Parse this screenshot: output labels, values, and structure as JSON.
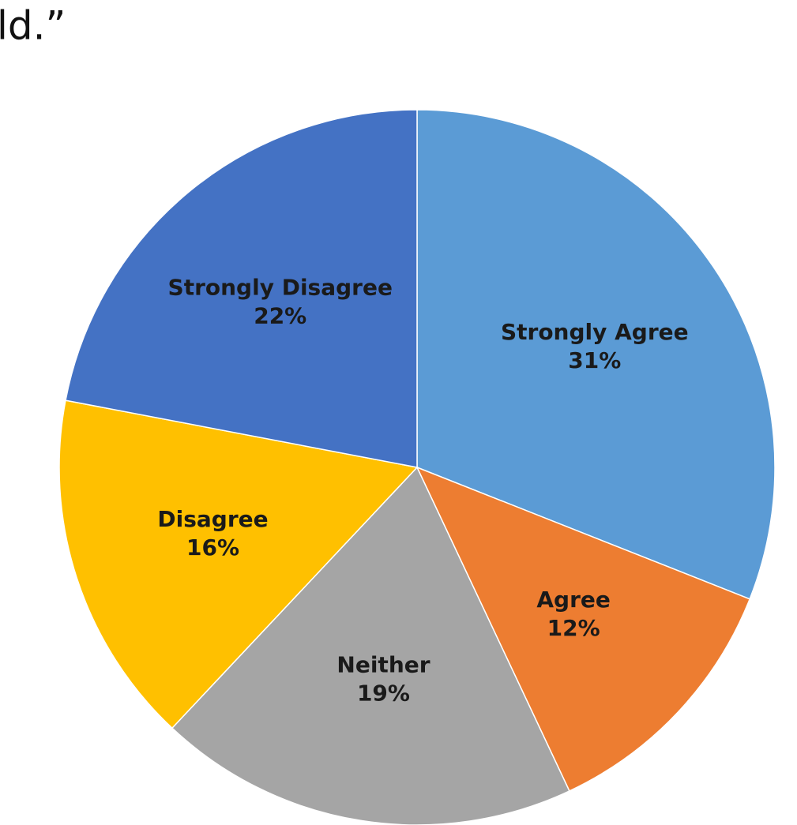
{
  "chart_data": {
    "type": "pie",
    "title": "ld.”",
    "categories": [
      "Strongly Agree",
      "Agree",
      "Neither",
      "Disagree",
      "Strongly Disagree"
    ],
    "values": [
      31,
      12,
      19,
      16,
      22
    ],
    "value_labels": [
      "31%",
      "12%",
      "19%",
      "16%",
      "22%"
    ],
    "colors": [
      "#5b9bd5",
      "#ed7d31",
      "#a5a5a5",
      "#ffc000",
      "#4472c4"
    ]
  }
}
